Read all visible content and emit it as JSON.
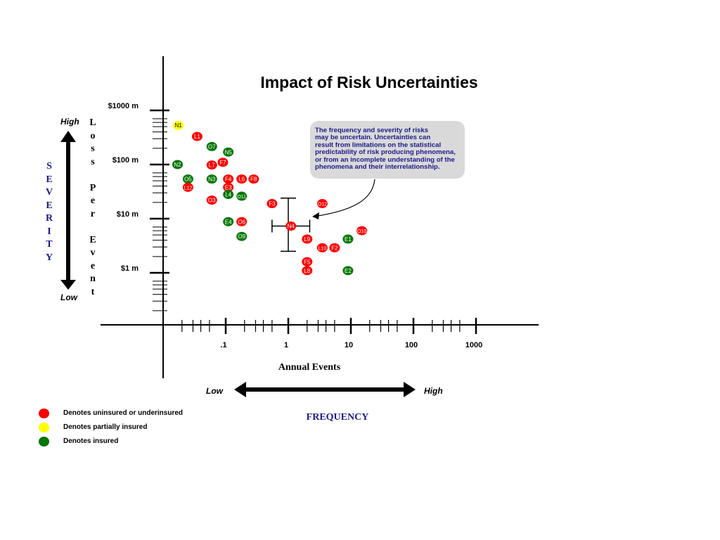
{
  "chart_data": {
    "type": "scatter",
    "title": "Impact of Risk Uncertainties",
    "xlabel": "Annual Events",
    "x_scale": "log",
    "y_scale": "log",
    "xlim": [
      0.01,
      1000
    ],
    "ylim": [
      0.1,
      1000
    ],
    "x_ticks": [
      {
        "value": 0.1,
        "label": ".1"
      },
      {
        "value": 1,
        "label": "1"
      },
      {
        "value": 10,
        "label": "10"
      },
      {
        "value": 100,
        "label": "100"
      },
      {
        "value": 1000,
        "label": "1000"
      }
    ],
    "y_ticks": [
      {
        "value": 1000,
        "label": "$1000 m"
      },
      {
        "value": 100,
        "label": "$100 m"
      },
      {
        "value": 10,
        "label": "$10 m"
      },
      {
        "value": 1,
        "label": "$1 m"
      }
    ],
    "status_colors": {
      "uninsured": "#ff0000",
      "partial": "#ffff00",
      "insured": "#007700"
    },
    "points": [
      {
        "label": "N1",
        "x": 0.0175,
        "y": 530,
        "status": "partial"
      },
      {
        "label": "L1",
        "x": 0.035,
        "y": 330,
        "status": "uninsured"
      },
      {
        "label": "O7",
        "x": 0.06,
        "y": 215,
        "status": "insured"
      },
      {
        "label": "N5",
        "x": 0.11,
        "y": 170,
        "status": "insured"
      },
      {
        "label": "N2",
        "x": 0.017,
        "y": 100,
        "status": "insured"
      },
      {
        "label": "L7",
        "x": 0.06,
        "y": 98,
        "status": "uninsured"
      },
      {
        "label": "F7",
        "x": 0.09,
        "y": 110,
        "status": "uninsured"
      },
      {
        "label": "O5",
        "x": 0.025,
        "y": 54,
        "status": "insured"
      },
      {
        "label": "N3",
        "x": 0.06,
        "y": 54,
        "status": "insured"
      },
      {
        "label": "F4",
        "x": 0.11,
        "y": 54,
        "status": "uninsured"
      },
      {
        "label": "L6",
        "x": 0.18,
        "y": 54,
        "status": "uninsured"
      },
      {
        "label": "F8",
        "x": 0.28,
        "y": 54,
        "status": "uninsured"
      },
      {
        "label": "L12",
        "x": 0.025,
        "y": 38,
        "status": "uninsured"
      },
      {
        "label": "E3",
        "x": 0.11,
        "y": 38,
        "status": "uninsured"
      },
      {
        "label": "L4",
        "x": 0.11,
        "y": 28,
        "status": "insured"
      },
      {
        "label": "O11",
        "x": 0.18,
        "y": 26,
        "status": "insured"
      },
      {
        "label": "O3",
        "x": 0.06,
        "y": 22,
        "status": "uninsured"
      },
      {
        "label": "F3",
        "x": 0.55,
        "y": 19,
        "status": "uninsured"
      },
      {
        "label": "O12",
        "x": 3.5,
        "y": 19,
        "status": "uninsured"
      },
      {
        "label": "E4",
        "x": 0.11,
        "y": 8.8,
        "status": "insured"
      },
      {
        "label": "O6",
        "x": 0.18,
        "y": 8.8,
        "status": "uninsured"
      },
      {
        "label": "N4",
        "x": 1.1,
        "y": 7.3,
        "status": "uninsured"
      },
      {
        "label": "O10",
        "x": 15,
        "y": 6,
        "status": "uninsured"
      },
      {
        "label": "O9",
        "x": 0.18,
        "y": 4.7,
        "status": "insured"
      },
      {
        "label": "L9",
        "x": 2,
        "y": 4.2,
        "status": "uninsured"
      },
      {
        "label": "E1",
        "x": 9,
        "y": 4.2,
        "status": "insured"
      },
      {
        "label": "L10",
        "x": 3.5,
        "y": 2.9,
        "status": "uninsured"
      },
      {
        "label": "F2",
        "x": 5.5,
        "y": 2.9,
        "status": "uninsured"
      },
      {
        "label": "F5",
        "x": 2,
        "y": 1.6,
        "status": "uninsured"
      },
      {
        "label": "L8",
        "x": 2,
        "y": 1.1,
        "status": "uninsured"
      },
      {
        "label": "E2",
        "x": 9,
        "y": 1.1,
        "status": "insured"
      }
    ],
    "error_bars": [
      {
        "x": 1,
        "y": 7.3,
        "x_low": 0.55,
        "x_high": 2.2,
        "y_low": 2.5,
        "y_high": 24
      }
    ],
    "callout": {
      "lines": [
        "The frequency and severity of risks",
        "may be uncertain. Uncertainties can",
        "result from limitations on the statistical",
        "predictability of risk producing phenomena,",
        "or from an incomplete understanding of the",
        "phenomena and their interrelationship."
      ],
      "color": "#1a1a8c",
      "background": "#d9d9d9"
    },
    "legend": [
      {
        "status": "uninsured",
        "text": "Denotes uninsured or underinsured"
      },
      {
        "status": "partial",
        "text": "Denotes partially insured"
      },
      {
        "status": "insured",
        "text": "Denotes insured"
      }
    ],
    "severity": {
      "letters": [
        "S",
        "E",
        "V",
        "E",
        "R",
        "I",
        "T",
        "Y"
      ],
      "high": "High",
      "low": "Low"
    },
    "loss_per_event": [
      "L",
      "o",
      "s",
      "s",
      "",
      "P",
      "e",
      "r",
      "",
      "E",
      "v",
      "e",
      "n",
      "t"
    ],
    "frequency": {
      "label": "FREQUENCY",
      "low": "Low",
      "high": "High"
    }
  }
}
